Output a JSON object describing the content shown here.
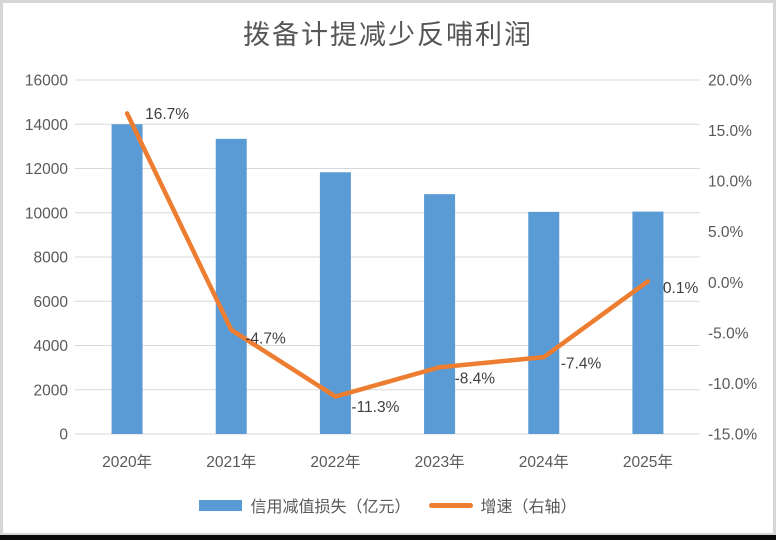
{
  "chart_data": {
    "type": "combo",
    "title": "拨备计提减少反哺利润",
    "categories": [
      "2020年",
      "2021年",
      "2022年",
      "2023年",
      "2024年",
      "2025年"
    ],
    "series": [
      {
        "name": "信用减值损失（亿元）",
        "type": "bar",
        "axis": "left",
        "color": "#5B9BD5",
        "values": [
          14000,
          13340,
          11830,
          10840,
          10040,
          10050
        ]
      },
      {
        "name": "增速（右轴）",
        "type": "line",
        "axis": "right",
        "color": "#ED7D31",
        "values": [
          16.7,
          -4.7,
          -11.3,
          -8.4,
          -7.4,
          0.1
        ],
        "point_labels": [
          "16.7%",
          "-4.7%",
          "-11.3%",
          "-8.4%",
          "-7.4%",
          "0.1%"
        ]
      }
    ],
    "left_axis": {
      "min": 0,
      "max": 16000,
      "step": 2000,
      "ticks": [
        "0",
        "2000",
        "4000",
        "6000",
        "8000",
        "10000",
        "12000",
        "14000",
        "16000"
      ]
    },
    "right_axis": {
      "min": -15,
      "max": 20,
      "step": 5,
      "ticks_top_down": [
        "20.0%",
        "15.0%",
        "10.0%",
        "5.0%",
        "0.0%",
        "-5.0%",
        "-10.0%",
        "-15.0%"
      ]
    },
    "grid": true,
    "legend_position": "bottom"
  },
  "colors": {
    "gridline": "#d9d9d9",
    "axis_text": "#595959",
    "data_label_text": "#3f3f3f",
    "title_text": "#565656",
    "frame_border": "#d6d6d6",
    "bottom_strip": "#0b0b0b",
    "background": "#ffffff"
  }
}
